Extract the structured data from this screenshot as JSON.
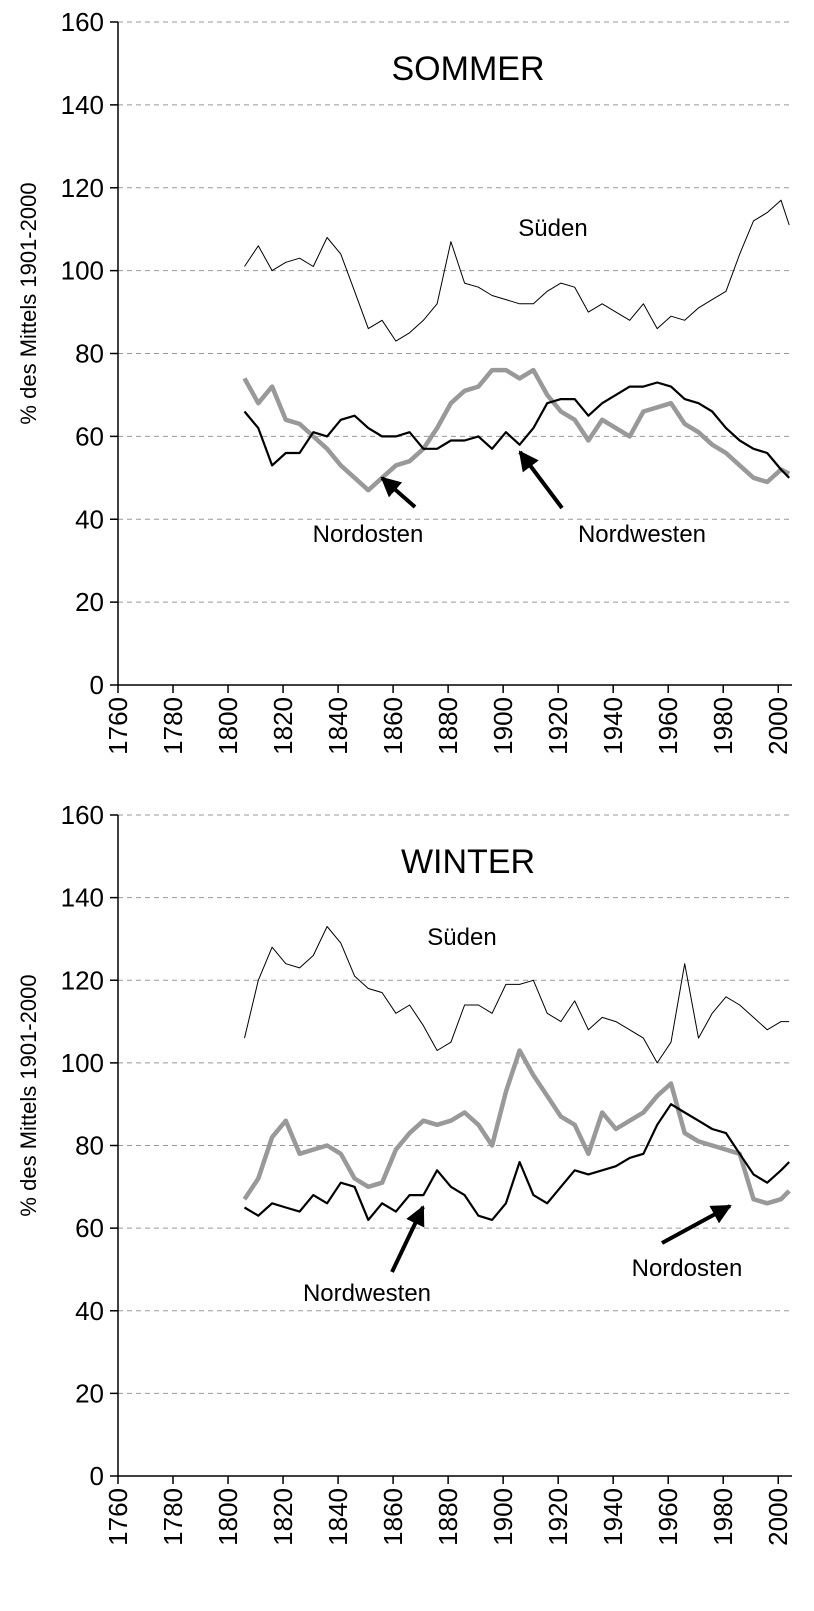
{
  "chart_data": [
    {
      "type": "line",
      "title": "SOMMER",
      "ylabel": "% des Mittels 1901-2000",
      "x": [
        1806,
        1811,
        1816,
        1821,
        1826,
        1831,
        1836,
        1841,
        1846,
        1851,
        1856,
        1861,
        1866,
        1871,
        1876,
        1881,
        1886,
        1891,
        1896,
        1901,
        1906,
        1911,
        1916,
        1921,
        1926,
        1931,
        1936,
        1941,
        1946,
        1951,
        1956,
        1961,
        1966,
        1971,
        1976,
        1981,
        1986,
        1991,
        1996,
        2001,
        2004
      ],
      "series": [
        {
          "name": "Süden",
          "color": "#000000",
          "values": [
            101,
            106,
            100,
            102,
            103,
            101,
            108,
            104,
            95,
            86,
            88,
            83,
            85,
            88,
            92,
            107,
            97,
            96,
            94,
            93,
            92,
            92,
            95,
            97,
            96,
            90,
            92,
            90,
            88,
            92,
            86,
            89,
            88,
            91,
            93,
            95,
            104,
            112,
            114,
            117,
            111
          ]
        },
        {
          "name": "Nordosten",
          "color": "#999999",
          "values": [
            74,
            68,
            72,
            64,
            63,
            60,
            57,
            53,
            50,
            47,
            50,
            53,
            54,
            57,
            62,
            68,
            71,
            72,
            76,
            76,
            74,
            76,
            70,
            66,
            64,
            59,
            64,
            62,
            60,
            66,
            67,
            68,
            63,
            61,
            58,
            56,
            53,
            50,
            49,
            52,
            51
          ]
        },
        {
          "name": "Nordwesten",
          "color": "#000000",
          "values": [
            66,
            62,
            53,
            56,
            56,
            61,
            60,
            64,
            65,
            62,
            60,
            60,
            61,
            57,
            57,
            59,
            59,
            60,
            57,
            61,
            58,
            62,
            68,
            69,
            69,
            65,
            68,
            70,
            72,
            72,
            73,
            72,
            69,
            68,
            66,
            62,
            59,
            57,
            56,
            52,
            50
          ]
        }
      ],
      "xlim": [
        1760,
        2005
      ],
      "xticks": [
        1760,
        1780,
        1800,
        1820,
        1840,
        1860,
        1880,
        1900,
        1920,
        1940,
        1960,
        1980,
        2000
      ],
      "ylim": [
        0,
        160
      ],
      "yticks": [
        0,
        20,
        40,
        60,
        80,
        100,
        120,
        140,
        160
      ],
      "grid": true
    },
    {
      "type": "line",
      "title": "WINTER",
      "ylabel": "% des Mittels 1901-2000",
      "x": [
        1806,
        1811,
        1816,
        1821,
        1826,
        1831,
        1836,
        1841,
        1846,
        1851,
        1856,
        1861,
        1866,
        1871,
        1876,
        1881,
        1886,
        1891,
        1896,
        1901,
        1906,
        1911,
        1916,
        1921,
        1926,
        1931,
        1936,
        1941,
        1946,
        1951,
        1956,
        1961,
        1966,
        1971,
        1976,
        1981,
        1986,
        1991,
        1996,
        2001,
        2004
      ],
      "series": [
        {
          "name": "Süden",
          "color": "#000000",
          "values": [
            106,
            120,
            128,
            124,
            123,
            126,
            133,
            129,
            121,
            118,
            117,
            112,
            114,
            109,
            103,
            105,
            114,
            114,
            112,
            119,
            119,
            120,
            112,
            110,
            115,
            108,
            111,
            110,
            108,
            106,
            100,
            105,
            124,
            106,
            112,
            116,
            114,
            111,
            108,
            110,
            110
          ]
        },
        {
          "name": "Nordosten",
          "color": "#999999",
          "values": [
            67,
            72,
            82,
            86,
            78,
            79,
            80,
            78,
            72,
            70,
            71,
            79,
            83,
            86,
            85,
            86,
            88,
            85,
            80,
            93,
            103,
            97,
            92,
            87,
            85,
            78,
            88,
            84,
            86,
            88,
            92,
            95,
            83,
            81,
            80,
            79,
            78,
            67,
            66,
            67,
            69
          ]
        },
        {
          "name": "Nordwesten",
          "color": "#000000",
          "values": [
            65,
            63,
            66,
            65,
            64,
            68,
            66,
            71,
            70,
            62,
            66,
            64,
            68,
            68,
            74,
            70,
            68,
            63,
            62,
            66,
            76,
            68,
            66,
            70,
            74,
            73,
            74,
            75,
            77,
            78,
            85,
            90,
            88,
            86,
            84,
            83,
            78,
            73,
            71,
            74,
            76
          ]
        }
      ],
      "xlim": [
        1760,
        2005
      ],
      "xticks": [
        1760,
        1780,
        1800,
        1820,
        1840,
        1860,
        1880,
        1900,
        1920,
        1940,
        1960,
        1980,
        2000
      ],
      "ylim": [
        0,
        160
      ],
      "yticks": [
        0,
        20,
        40,
        60,
        80,
        100,
        120,
        140,
        160
      ],
      "grid": true
    }
  ]
}
